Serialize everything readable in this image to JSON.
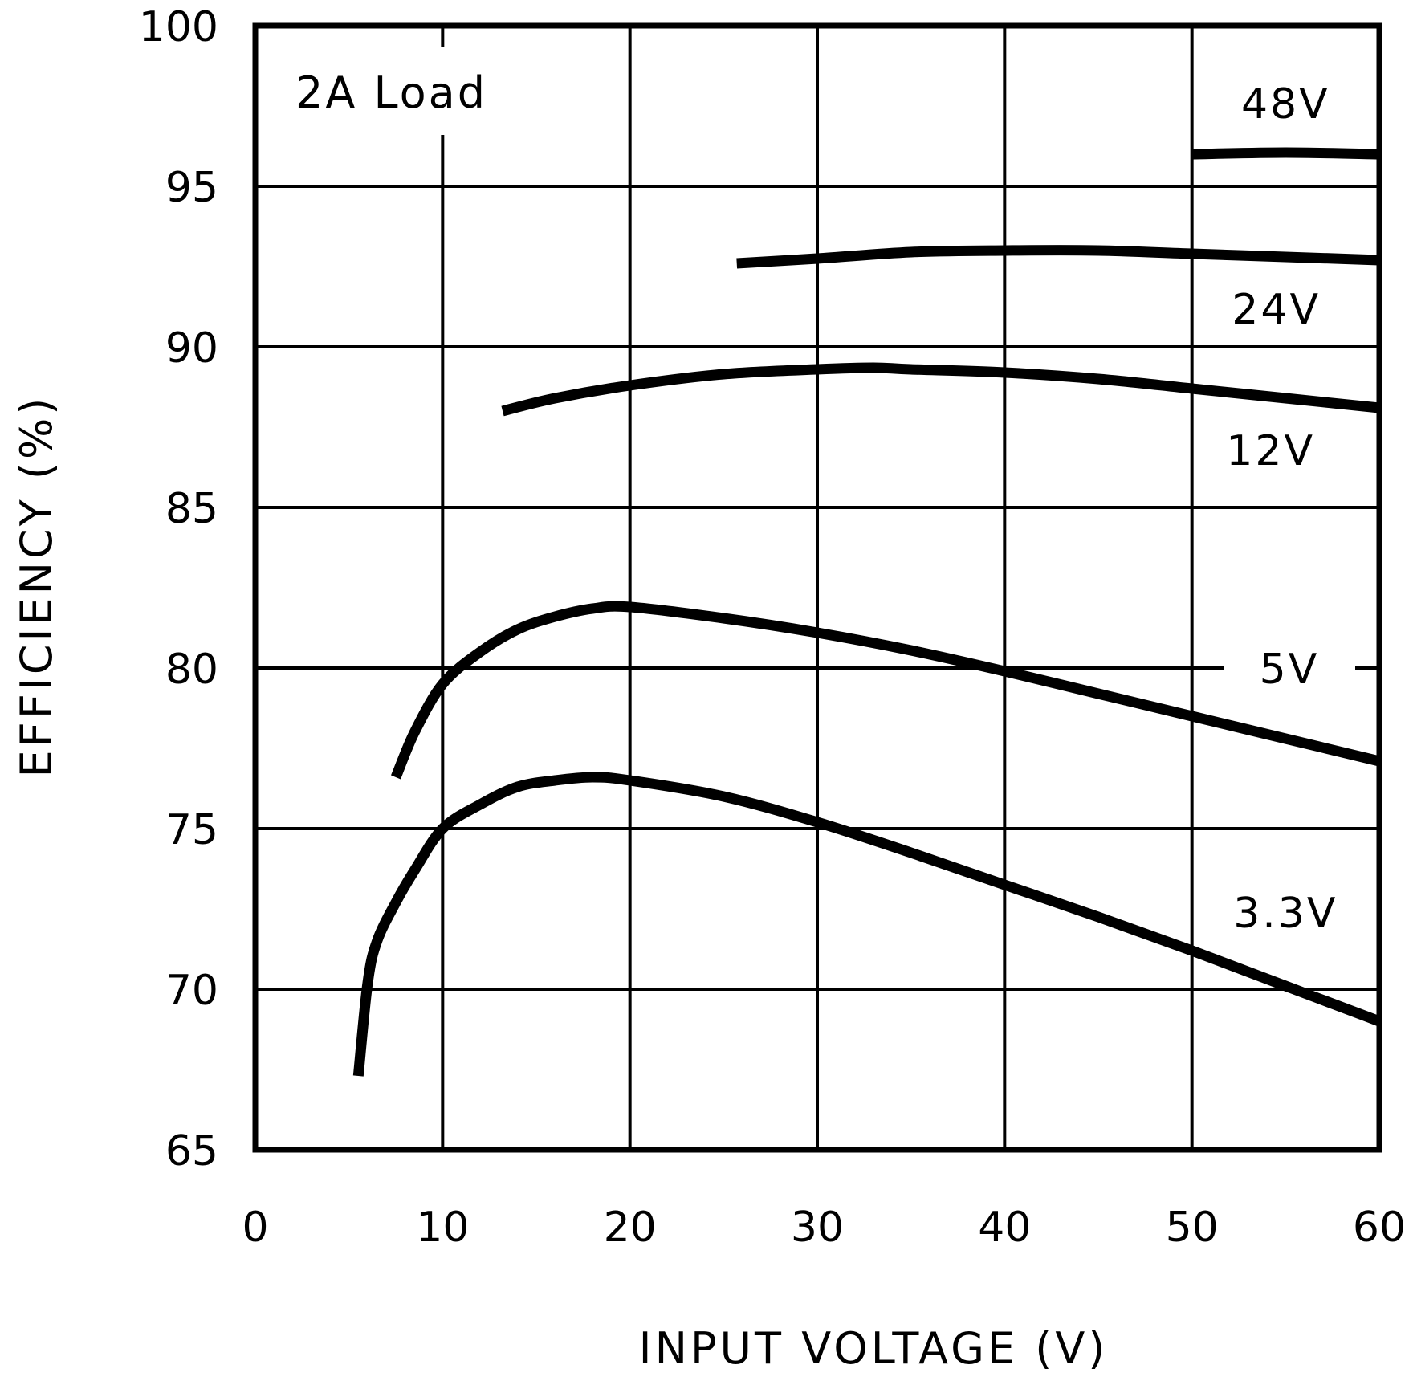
{
  "chart_data": {
    "type": "line",
    "title": "",
    "annotation": "2A Load",
    "xlabel": "INPUT VOLTAGE (V)",
    "ylabel": "EFFICIENCY (%)",
    "xlim": [
      0,
      60
    ],
    "ylim": [
      65,
      100
    ],
    "xticks": [
      0,
      10,
      20,
      30,
      40,
      50,
      60
    ],
    "yticks": [
      65,
      70,
      75,
      80,
      85,
      90,
      95,
      100
    ],
    "grid": true,
    "legend_position": "inline labels at right",
    "series": [
      {
        "name": "48V",
        "x": [
          50,
          55,
          60
        ],
        "y": [
          96.0,
          96.05,
          96.0
        ]
      },
      {
        "name": "24V",
        "x": [
          25.7,
          30,
          35,
          40,
          45,
          50,
          55,
          60
        ],
        "y": [
          92.6,
          92.75,
          92.95,
          93.0,
          93.0,
          92.9,
          92.8,
          92.7
        ]
      },
      {
        "name": "12V",
        "x": [
          13.2,
          16,
          20,
          25,
          30,
          33,
          35,
          40,
          45,
          50,
          55,
          60
        ],
        "y": [
          88.0,
          88.4,
          88.8,
          89.15,
          89.3,
          89.35,
          89.3,
          89.2,
          89.0,
          88.7,
          88.4,
          88.1
        ]
      },
      {
        "name": "5V",
        "x": [
          7.5,
          8.5,
          10,
          12,
          14,
          16,
          18,
          20,
          25,
          30,
          35,
          40,
          45,
          50,
          55,
          60
        ],
        "y": [
          76.6,
          78.0,
          79.5,
          80.5,
          81.2,
          81.6,
          81.85,
          81.9,
          81.55,
          81.1,
          80.55,
          79.9,
          79.2,
          78.5,
          77.8,
          77.1
        ]
      },
      {
        "name": "3.3V",
        "x": [
          5.5,
          6.0,
          6.5,
          7.5,
          8.5,
          10,
          12,
          14,
          16,
          18,
          20,
          25,
          30,
          35,
          40,
          45,
          50,
          55,
          60
        ],
        "y": [
          67.3,
          70.2,
          71.5,
          72.7,
          73.7,
          75.0,
          75.75,
          76.3,
          76.5,
          76.6,
          76.5,
          76.0,
          75.2,
          74.25,
          73.25,
          72.25,
          71.2,
          70.1,
          69.0
        ]
      }
    ],
    "series_labels": [
      {
        "name": "48V",
        "x": 55.0,
        "y": 97.6
      },
      {
        "name": "24V",
        "x": 54.5,
        "y": 91.2
      },
      {
        "name": "12V",
        "x": 54.2,
        "y": 86.8
      },
      {
        "name": "5V",
        "x": 55.2,
        "y": 80.0,
        "masks_gridline": true
      },
      {
        "name": "3.3V",
        "x": 55.0,
        "y": 72.4
      }
    ]
  },
  "colors": {
    "background": "#ffffff",
    "ink": "#000000"
  }
}
